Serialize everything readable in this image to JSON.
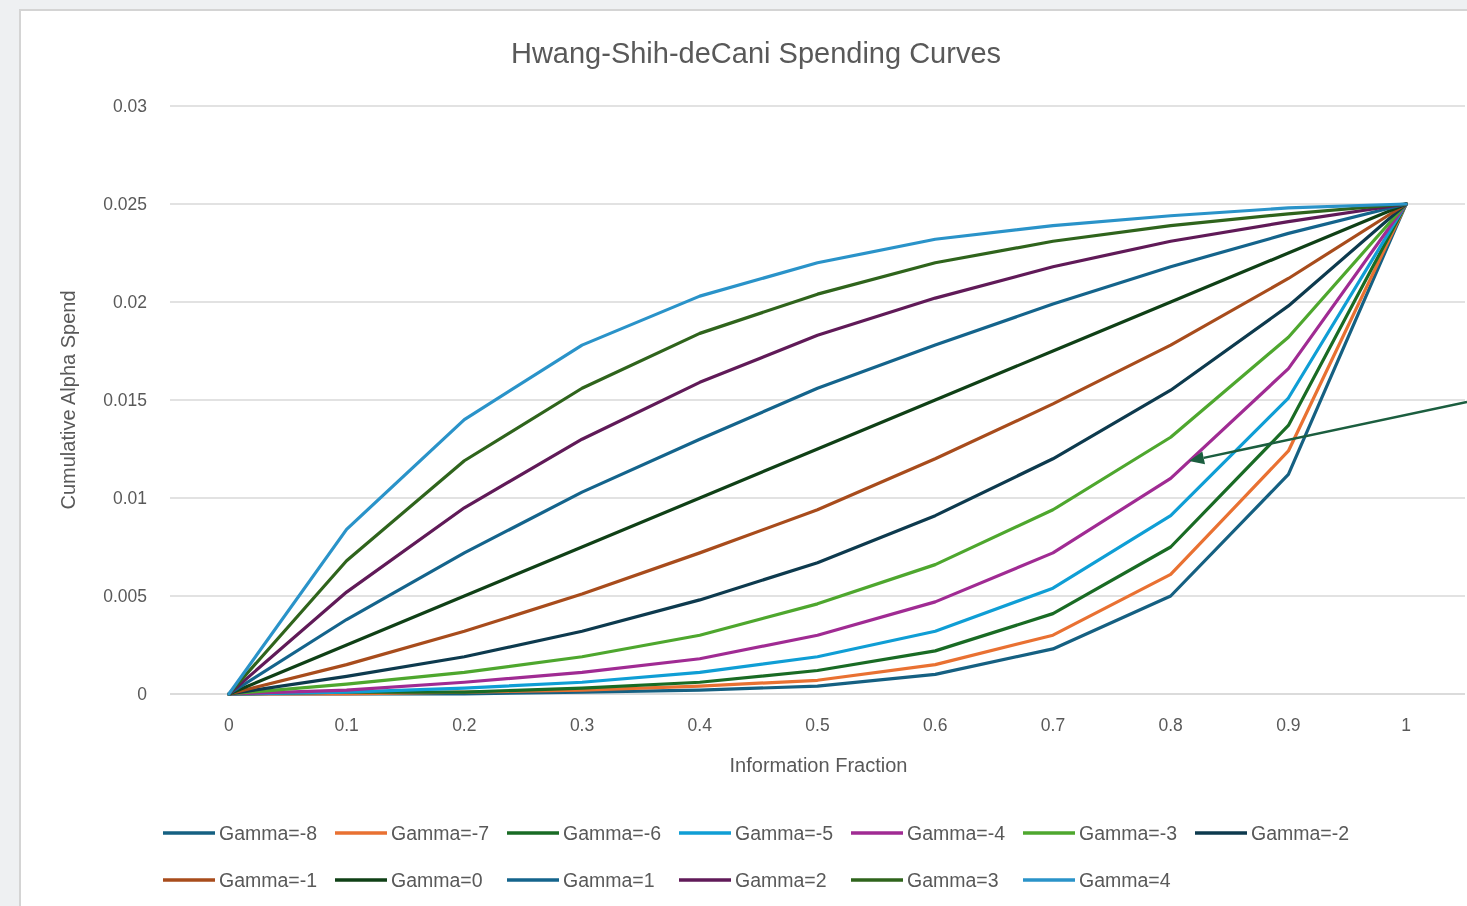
{
  "chart_data": {
    "type": "line",
    "title": "Hwang-Shih-deCani Spending Curves",
    "xlabel": "Information Fraction",
    "ylabel": "Cumulative Alpha Spend",
    "categories": [
      "0",
      "0.1",
      "0.2",
      "0.3",
      "0.4",
      "0.5",
      "0.6",
      "0.7",
      "0.8",
      "0.9",
      "1"
    ],
    "ylim": [
      0,
      0.03
    ],
    "yticks": [
      0,
      0.005,
      0.01,
      0.015,
      0.02,
      0.025,
      0.03
    ],
    "grid": "y",
    "legend": "bottom",
    "series": [
      {
        "name": "Gamma=-8",
        "color": "#156082",
        "values": [
          0,
          0,
          0,
          0.0001,
          0.0002,
          0.0004,
          0.001,
          0.0023,
          0.005,
          0.0112,
          0.025
        ]
      },
      {
        "name": "Gamma=-7",
        "color": "#e97132",
        "values": [
          0,
          0,
          0.0001,
          0.0002,
          0.0004,
          0.0007,
          0.0015,
          0.003,
          0.0061,
          0.0124,
          0.025
        ]
      },
      {
        "name": "Gamma=-6",
        "color": "#196b24",
        "values": [
          0,
          0.0001,
          0.0001,
          0.0003,
          0.0006,
          0.0012,
          0.0022,
          0.0041,
          0.0075,
          0.0137,
          0.025
        ]
      },
      {
        "name": "Gamma=-5",
        "color": "#0f9ed5",
        "values": [
          0,
          0.0001,
          0.0003,
          0.0006,
          0.0011,
          0.0019,
          0.0032,
          0.0054,
          0.0091,
          0.0151,
          0.025
        ]
      },
      {
        "name": "Gamma=-4",
        "color": "#a02b93",
        "values": [
          0,
          0.0002,
          0.0006,
          0.0011,
          0.0018,
          0.003,
          0.0047,
          0.0072,
          0.011,
          0.0166,
          0.025
        ]
      },
      {
        "name": "Gamma=-3",
        "color": "#4ea72e",
        "values": [
          0,
          0.0005,
          0.0011,
          0.0019,
          0.003,
          0.0046,
          0.0066,
          0.0094,
          0.0131,
          0.0182,
          0.025
        ]
      },
      {
        "name": "Gamma=-2",
        "color": "#0d3a4e",
        "values": [
          0,
          0.0009,
          0.0019,
          0.0032,
          0.0048,
          0.0067,
          0.0091,
          0.012,
          0.0155,
          0.0198,
          0.025
        ]
      },
      {
        "name": "Gamma=-1",
        "color": "#a84c1c",
        "values": [
          0,
          0.0015,
          0.0032,
          0.0051,
          0.0072,
          0.0094,
          0.012,
          0.0148,
          0.0178,
          0.0212,
          0.025
        ]
      },
      {
        "name": "Gamma=0",
        "color": "#0f4016",
        "values": [
          0,
          0.0025,
          0.005,
          0.0075,
          0.01,
          0.0125,
          0.015,
          0.0175,
          0.02,
          0.0225,
          0.025
        ]
      },
      {
        "name": "Gamma=1",
        "color": "#14648c",
        "values": [
          0,
          0.0038,
          0.0072,
          0.0103,
          0.013,
          0.0156,
          0.0178,
          0.0199,
          0.0218,
          0.0235,
          0.025
        ]
      },
      {
        "name": "Gamma=2",
        "color": "#601a58",
        "values": [
          0,
          0.0052,
          0.0095,
          0.013,
          0.0159,
          0.0183,
          0.0202,
          0.0218,
          0.0231,
          0.0241,
          0.025
        ]
      },
      {
        "name": "Gamma=3",
        "color": "#2f641c",
        "values": [
          0,
          0.0068,
          0.0119,
          0.0156,
          0.0184,
          0.0204,
          0.022,
          0.0231,
          0.0239,
          0.0245,
          0.025
        ]
      },
      {
        "name": "Gamma=4",
        "color": "#2a93c9",
        "values": [
          0,
          0.0084,
          0.014,
          0.0178,
          0.0203,
          0.022,
          0.0232,
          0.0239,
          0.0244,
          0.0248,
          0.025
        ]
      }
    ]
  }
}
